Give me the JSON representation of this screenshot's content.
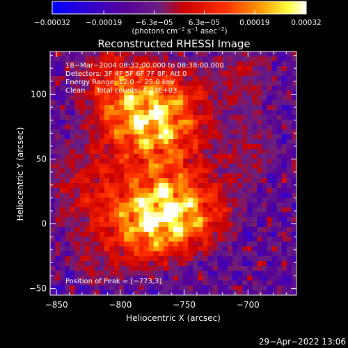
{
  "chart_data": {
    "type": "heatmap",
    "title": "Reconstructed RHESSI Image",
    "xlabel": "Heliocentric X (arcsec)",
    "ylabel": "Heliocentric Y (arcsec)",
    "xlim": [
      -855,
      -662
    ],
    "ylim": [
      -55,
      133
    ],
    "x_ticks": [
      {
        "value": -850,
        "label": "−850"
      },
      {
        "value": -800,
        "label": "−800"
      },
      {
        "value": -750,
        "label": "−750"
      },
      {
        "value": -700,
        "label": "−700"
      }
    ],
    "y_ticks": [
      {
        "value": 100,
        "label": "100"
      },
      {
        "value": 50,
        "label": "50"
      },
      {
        "value": 0,
        "label": "0"
      },
      {
        "value": -50,
        "label": "−50"
      }
    ],
    "colorbar": {
      "range": [
        -0.00032,
        0.00032
      ],
      "ticks": [
        {
          "value": -0.00032,
          "label": "−0.00032"
        },
        {
          "value": -0.00019,
          "label": "−0.00019"
        },
        {
          "value": -6.3e-05,
          "label": "−6.3e−05"
        },
        {
          "value": 6.3e-05,
          "label": "6.3e−05"
        },
        {
          "value": 0.00019,
          "label": "0.00019"
        },
        {
          "value": 0.00032,
          "label": "0.00032"
        }
      ],
      "units_text": "(photons cm",
      "units_sup1": "−2",
      "units_mid": " s",
      "units_sup2": "−1",
      "units_mid2": " asec",
      "units_sup3": "−2",
      "units_end": ")"
    },
    "annotations": [
      "18−Mar−2004 08:32:00.000 to 08:38:00.000",
      "Detectors: 3F 4F 5F 6F 7F 8F, Att 0",
      "Energy Range: 12.0 − 25.0 keV",
      "Clean     Total counts: 4.73E+03"
    ],
    "peak_label": "Position of Peak = [−773,3]",
    "timestamp": "29−Apr−2022 13:06",
    "sources": [
      {
        "x": -785,
        "y": 80,
        "amp": 1.0
      },
      {
        "x": -779,
        "y": 2,
        "amp": 1.0
      },
      {
        "x": -758,
        "y": 12,
        "amp": 0.78
      },
      {
        "x": -807,
        "y": 112,
        "amp": 0.6
      },
      {
        "x": -756,
        "y": 96,
        "amp": 0.55
      },
      {
        "x": -760,
        "y": 60,
        "amp": 0.45
      },
      {
        "x": -730,
        "y": 6,
        "amp": 0.42
      },
      {
        "x": -700,
        "y": 118,
        "amp": 0.38
      },
      {
        "x": -694,
        "y": 55,
        "amp": 0.35
      },
      {
        "x": -836,
        "y": 42,
        "amp": 0.3
      },
      {
        "x": -820,
        "y": -32,
        "amp": 0.32
      },
      {
        "x": -820,
        "y": 20,
        "amp": 0.35
      }
    ]
  }
}
